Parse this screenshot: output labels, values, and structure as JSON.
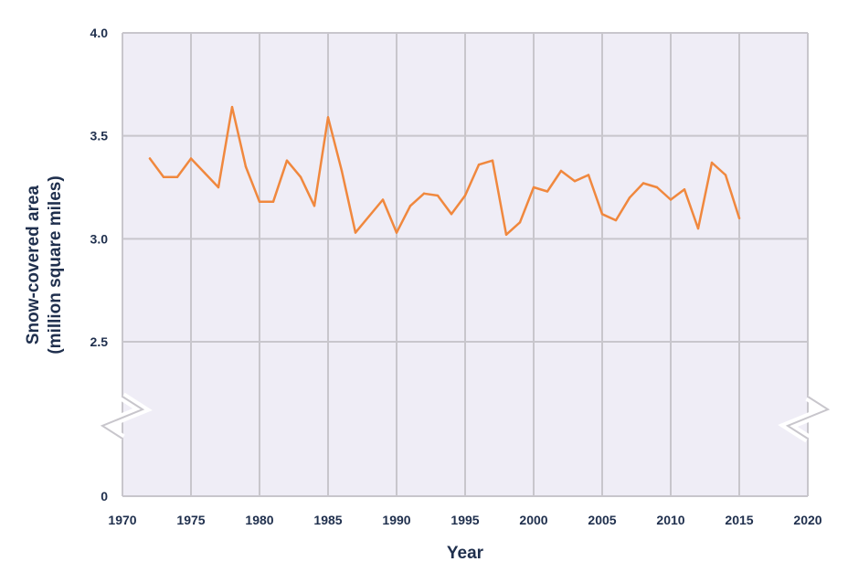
{
  "chart_data": {
    "type": "line",
    "title": "",
    "xlabel": "Year",
    "ylabel_line1": "Snow-covered area",
    "ylabel_line2": "(million square miles)",
    "xlim": [
      1970,
      2020
    ],
    "ylim": [
      0,
      4.0
    ],
    "axis_break": [
      0,
      2.2
    ],
    "x_ticks": [
      "1970",
      "1975",
      "1980",
      "1985",
      "1990",
      "1995",
      "2000",
      "2005",
      "2010",
      "2015",
      "2020"
    ],
    "y_ticks": [
      {
        "value": 4.0,
        "label": "4.0"
      },
      {
        "value": 3.5,
        "label": "3.5"
      },
      {
        "value": 3.0,
        "label": "3.0"
      },
      {
        "value": 2.5,
        "label": "2.5"
      },
      {
        "value": 0,
        "label": "0"
      }
    ],
    "grid": true,
    "colors": {
      "line": "#f0883e",
      "plot_bg": "#efedf6",
      "grid": "#c8c6cc",
      "text": "#1f2f4d"
    },
    "series": [
      {
        "x": [
          1972,
          1973,
          1974,
          1975,
          1976,
          1977,
          1978,
          1979,
          1980,
          1981,
          1982,
          1983,
          1984,
          1985,
          1986,
          1987,
          1988,
          1989,
          1990,
          1991,
          1992,
          1993,
          1994,
          1995,
          1996,
          1997,
          1998,
          1999,
          2000,
          2001,
          2002,
          2003,
          2004,
          2005,
          2006,
          2007,
          2008,
          2009,
          2010,
          2011,
          2012,
          2013,
          2014,
          2015
        ],
        "values": [
          3.39,
          3.3,
          3.3,
          3.39,
          3.32,
          3.25,
          3.64,
          3.35,
          3.18,
          3.18,
          3.38,
          3.3,
          3.16,
          3.59,
          3.33,
          3.03,
          3.11,
          3.19,
          3.03,
          3.16,
          3.22,
          3.21,
          3.12,
          3.21,
          3.36,
          3.38,
          3.02,
          3.08,
          3.25,
          3.23,
          3.33,
          3.28,
          3.31,
          3.12,
          3.09,
          3.2,
          3.27,
          3.25,
          3.19,
          3.24,
          3.05,
          3.37,
          3.31,
          3.1
        ]
      }
    ]
  }
}
